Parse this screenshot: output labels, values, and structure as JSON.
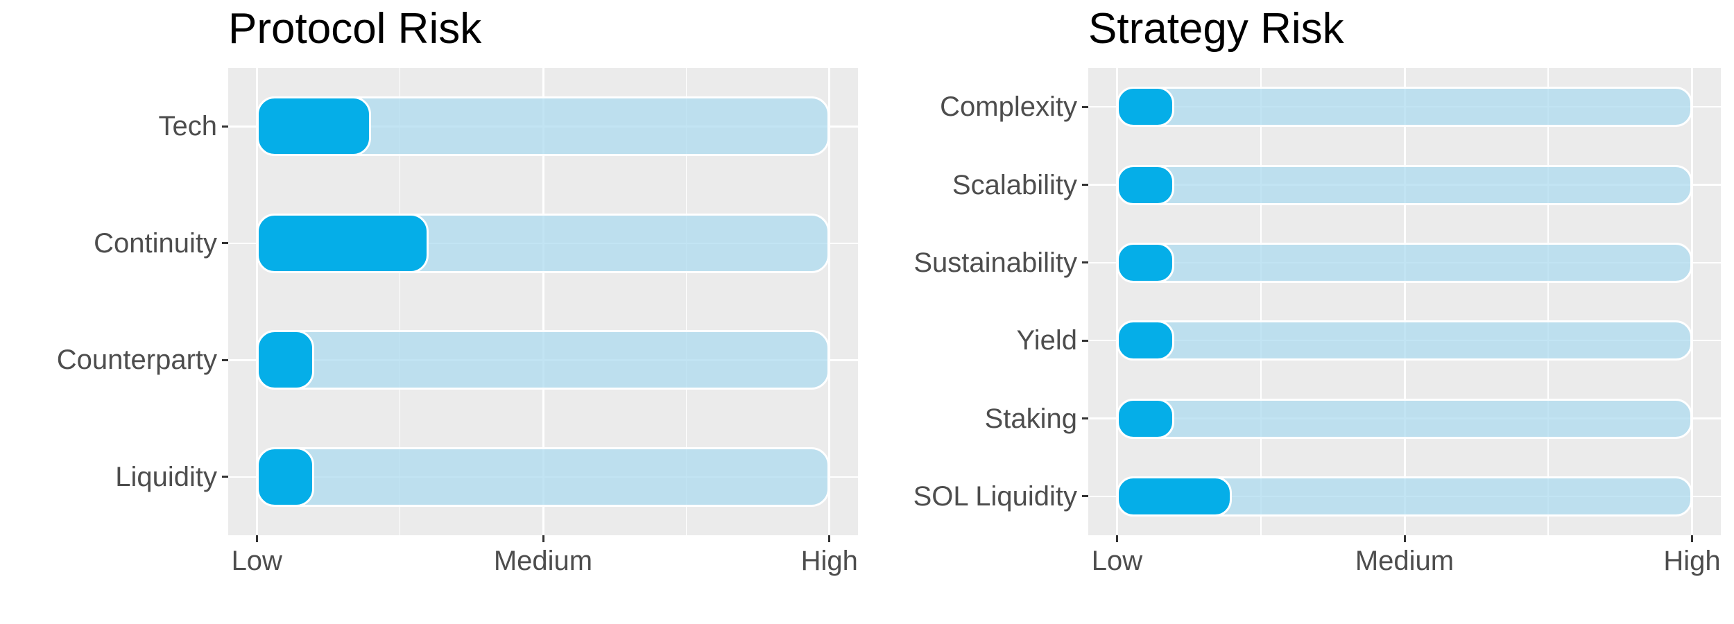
{
  "figure": {
    "background": "#FFFFFF",
    "description": "Two horizontal bullet-style bar charts side by side"
  },
  "colors": {
    "panel_bg": "#EBEBEB",
    "gridline": "#FFFFFF",
    "bar_fill": "#05AEE8",
    "bar_track_rgba": "rgba(170,218,238,0.72)",
    "bar_stroke": "#FFFFFF",
    "axis_text": "#4D4D4D",
    "tick_mark": "#333333",
    "title_text": "#000000"
  },
  "chart_data": [
    {
      "type": "bar",
      "orientation": "horizontal",
      "title": "Protocol Risk",
      "categories": [
        "Tech",
        "Continuity",
        "Counterparty",
        "Liquidity"
      ],
      "values": [
        1.4,
        1.6,
        1.2,
        1.2
      ],
      "x_tick_labels": [
        "Low",
        "Medium",
        "High"
      ],
      "x_tick_values": [
        1,
        2,
        3
      ],
      "xlim": [
        0.9,
        3.1
      ],
      "track_range": [
        1,
        3
      ],
      "grid": "white major + minor verticals, white major horizontals on grey panel",
      "legend": "none"
    },
    {
      "type": "bar",
      "orientation": "horizontal",
      "title": "Strategy Risk",
      "categories": [
        "Complexity",
        "Scalability",
        "Sustainability",
        "Yield",
        "Staking",
        "SOL Liquidity"
      ],
      "values": [
        1.2,
        1.2,
        1.2,
        1.2,
        1.2,
        1.4
      ],
      "x_tick_labels": [
        "Low",
        "Medium",
        "High"
      ],
      "x_tick_values": [
        1,
        2,
        3
      ],
      "xlim": [
        0.9,
        3.1
      ],
      "track_range": [
        1,
        3
      ],
      "grid": "white major + minor verticals, white major horizontals on grey panel",
      "legend": "none"
    }
  ]
}
